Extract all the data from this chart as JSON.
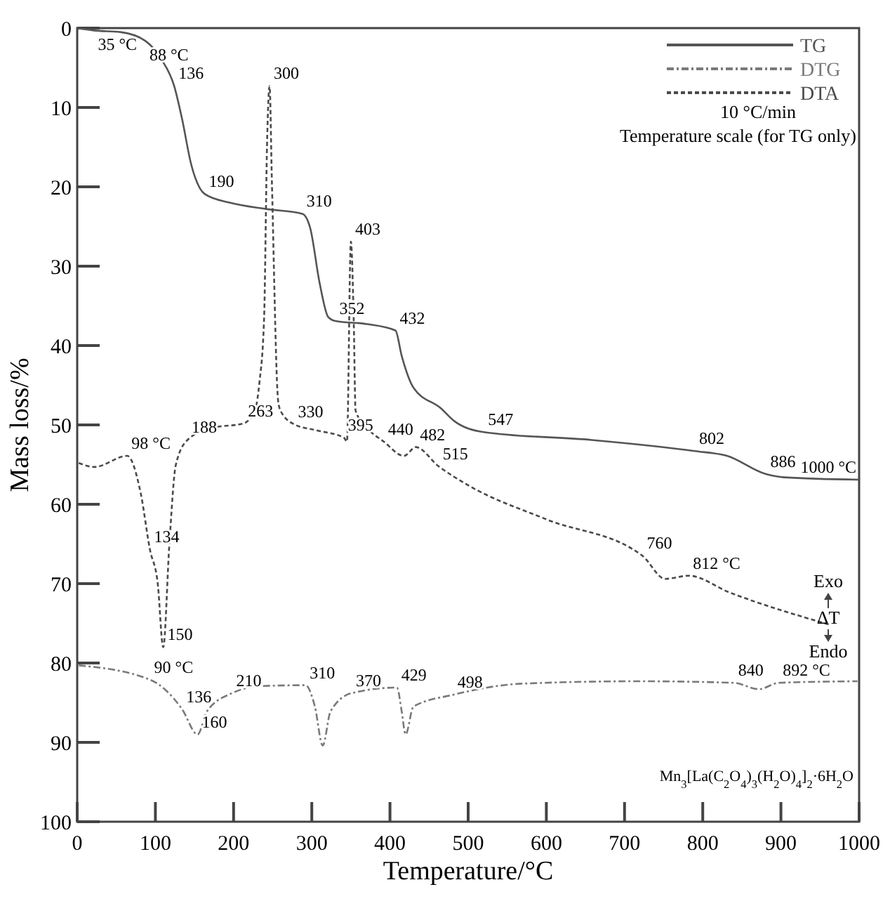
{
  "chart_data": {
    "type": "line",
    "xlabel": "Temperature/°C",
    "ylabel": "Mass loss/%",
    "xlim": [
      0,
      1000
    ],
    "xticks": [
      0,
      100,
      200,
      300,
      400,
      500,
      600,
      700,
      800,
      900,
      1000
    ],
    "ylim": [
      100,
      0
    ],
    "yticks": [
      0,
      10,
      20,
      30,
      40,
      50,
      60,
      70,
      80,
      90,
      100
    ],
    "legend": "top right",
    "grid": false,
    "marker": "none",
    "series": [
      {
        "name": "TG",
        "color": "#555555",
        "line_style": "solid",
        "x": [
          0,
          21,
          55,
          87,
          107.5,
          124,
          134,
          145.6,
          163,
          195,
          242,
          288,
          298,
          310,
          321,
          330,
          371,
          407,
          415,
          430,
          465,
          482,
          520,
          658,
          790,
          831,
          881,
          904,
          1000
        ],
        "values": [
          0,
          0.3,
          0.5,
          1.6,
          3.9,
          7.3,
          11.4,
          17.1,
          20.9,
          22.0,
          22.8,
          23.4,
          25.2,
          32.1,
          36.4,
          36.9,
          37.3,
          38.1,
          41.3,
          45.3,
          47.9,
          49.5,
          50.9,
          51.9,
          53.3,
          53.9,
          56.2,
          56.6,
          56.9
        ]
      },
      {
        "name": "DTG",
        "color": "#7a7a7a",
        "line_style": "dotted",
        "x": [
          2,
          93,
          134,
          154,
          166,
          198,
          236,
          292,
          304,
          314,
          324,
          351,
          409,
          415,
          420,
          430,
          481,
          570,
          717,
          840,
          872,
          897,
          998
        ],
        "values": [
          80.3,
          82.1,
          85.8,
          89.0,
          86.1,
          83.8,
          82.9,
          82.8,
          85.5,
          90.4,
          86.1,
          83.8,
          83.1,
          86.1,
          89.0,
          85.5,
          84.0,
          82.6,
          82.3,
          82.5,
          83.3,
          82.5,
          82.3
        ]
      },
      {
        "name": "DTA",
        "color": "#4a4a4a",
        "line_style": "dashed",
        "x": [
          2,
          22,
          64,
          81,
          93,
          103,
          110,
          118,
          126,
          141,
          172,
          213,
          228,
          233,
          239,
          243,
          246,
          249,
          257,
          260,
          277,
          307,
          341,
          345,
          350,
          353.6,
          356,
          371,
          392,
          418,
          433,
          462,
          500,
          600,
          723,
          752,
          782,
          834,
          963
        ],
        "values": [
          54.8,
          55.3,
          53.9,
          58.5,
          65.7,
          70.0,
          78.0,
          64.8,
          55.1,
          51.9,
          50.4,
          49.8,
          47.9,
          44.7,
          36.6,
          13.7,
          7.3,
          19.4,
          47.0,
          48.2,
          49.9,
          50.7,
          51.6,
          52.1,
          26.9,
          36.6,
          48.2,
          50.4,
          52.1,
          53.9,
          52.8,
          55.2,
          57.6,
          61.9,
          66.5,
          69.4,
          69.0,
          71.1,
          75.2
        ]
      }
    ],
    "annotations": [
      {
        "text": "35 °C",
        "x": 21,
        "y": 0.3
      },
      {
        "text": "88 °C",
        "x": 87,
        "y": 1.6
      },
      {
        "text": "136",
        "x": 124,
        "y": 7.3
      },
      {
        "text": "190",
        "x": 163,
        "y": 20.9
      },
      {
        "text": "310",
        "x": 288,
        "y": 23.4
      },
      {
        "text": "352",
        "x": 330,
        "y": 36.9
      },
      {
        "text": "432",
        "x": 407,
        "y": 38.1
      },
      {
        "text": "547",
        "x": 520,
        "y": 50.9
      },
      {
        "text": "802",
        "x": 790,
        "y": 53.3
      },
      {
        "text": "886",
        "x": 881,
        "y": 56.2
      },
      {
        "text": "1000 °C",
        "x": 1000,
        "y": 56.9
      },
      {
        "text": "98 °C",
        "x": 64,
        "y": 53.9
      },
      {
        "text": "134",
        "x": 93,
        "y": 65.7
      },
      {
        "text": "150",
        "x": 110,
        "y": 78.0
      },
      {
        "text": "188",
        "x": 141,
        "y": 51.9
      },
      {
        "text": "263",
        "x": 213,
        "y": 49.8
      },
      {
        "text": "300",
        "x": 246,
        "y": 7.3
      },
      {
        "text": "330",
        "x": 277,
        "y": 49.9
      },
      {
        "text": "395",
        "x": 341,
        "y": 51.6
      },
      {
        "text": "403",
        "x": 350,
        "y": 26.9
      },
      {
        "text": "440",
        "x": 392,
        "y": 52.1
      },
      {
        "text": "482",
        "x": 433,
        "y": 52.8
      },
      {
        "text": "515",
        "x": 462,
        "y": 55.2
      },
      {
        "text": "760",
        "x": 723,
        "y": 66.5
      },
      {
        "text": "812 °C",
        "x": 782,
        "y": 69.0
      },
      {
        "text": "90 °C",
        "x": 93,
        "y": 82.1
      },
      {
        "text": "136",
        "x": 134,
        "y": 85.8
      },
      {
        "text": "160",
        "x": 154,
        "y": 89.0
      },
      {
        "text": "210",
        "x": 198,
        "y": 83.8
      },
      {
        "text": "310",
        "x": 292,
        "y": 82.8
      },
      {
        "text": "370",
        "x": 351,
        "y": 83.8
      },
      {
        "text": "429",
        "x": 409,
        "y": 83.1
      },
      {
        "text": "498",
        "x": 481,
        "y": 84.0
      },
      {
        "text": "840",
        "x": 840,
        "y": 82.5
      },
      {
        "text": "892 °C",
        "x": 897,
        "y": 82.5
      },
      "10 °C/min",
      "Temperature scale (for TG only)",
      "Exo",
      "ΔT",
      "Endo",
      "Mn$_{3}$[La(C$_{2}$O$_{4}$)$_{3}$(H$_{2}$O)$_{4}$]$_{2}$·6H$_{2}$O"
    ]
  }
}
